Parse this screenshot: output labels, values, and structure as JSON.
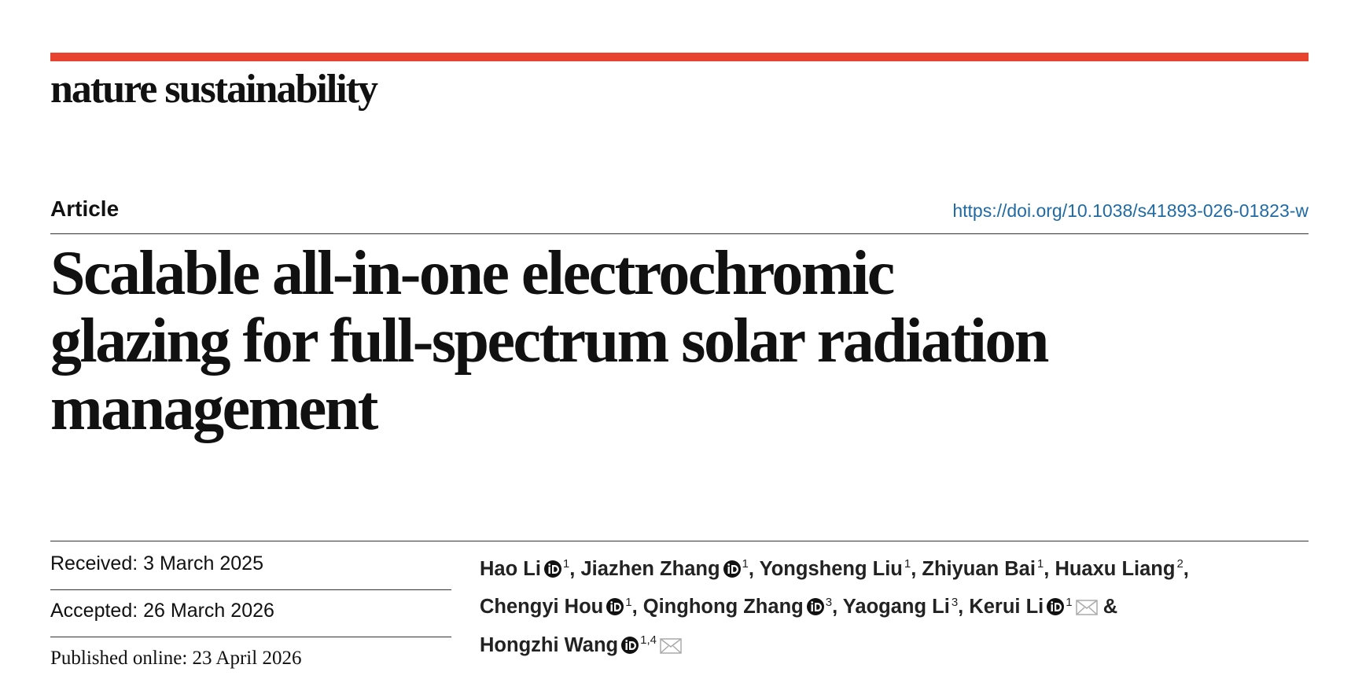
{
  "header": {
    "journal": "nature sustainability"
  },
  "article": {
    "type": "Article",
    "doi": "https://doi.org/10.1038/s41893-026-01823-w",
    "title_lines": [
      "Scalable all-in-one electrochromic",
      "glazing for full-spectrum solar radiation",
      "management"
    ]
  },
  "dates": {
    "received": "Received: 3 March 2025",
    "accepted": "Accepted: 26 March 2026",
    "published": "Published online: 23 April 2026"
  },
  "authors": [
    {
      "name": "Hao Li",
      "orcid": true,
      "affil": "1",
      "joiner": ", "
    },
    {
      "name": "Jiazhen Zhang",
      "orcid": true,
      "affil": "1",
      "joiner": ", "
    },
    {
      "name": "Yongsheng Liu",
      "orcid": false,
      "affil": "1",
      "joiner": ", "
    },
    {
      "name": "Zhiyuan Bai",
      "orcid": false,
      "affil": "1",
      "joiner": ", "
    },
    {
      "name": "Huaxu Liang",
      "orcid": false,
      "affil": "2",
      "joiner": ","
    },
    {
      "name": "Chengyi Hou",
      "orcid": true,
      "affil": "1",
      "joiner": ", "
    },
    {
      "name": "Qinghong Zhang",
      "orcid": true,
      "affil": "3",
      "joiner": ", "
    },
    {
      "name": "Yaogang Li",
      "orcid": false,
      "affil": "3",
      "joiner": ", "
    },
    {
      "name": "Kerui Li",
      "orcid": true,
      "affil": "1",
      "email": true,
      "joiner": " &"
    },
    {
      "name": "Hongzhi Wang",
      "orcid": true,
      "affil": "1,4",
      "email": true
    }
  ]
}
